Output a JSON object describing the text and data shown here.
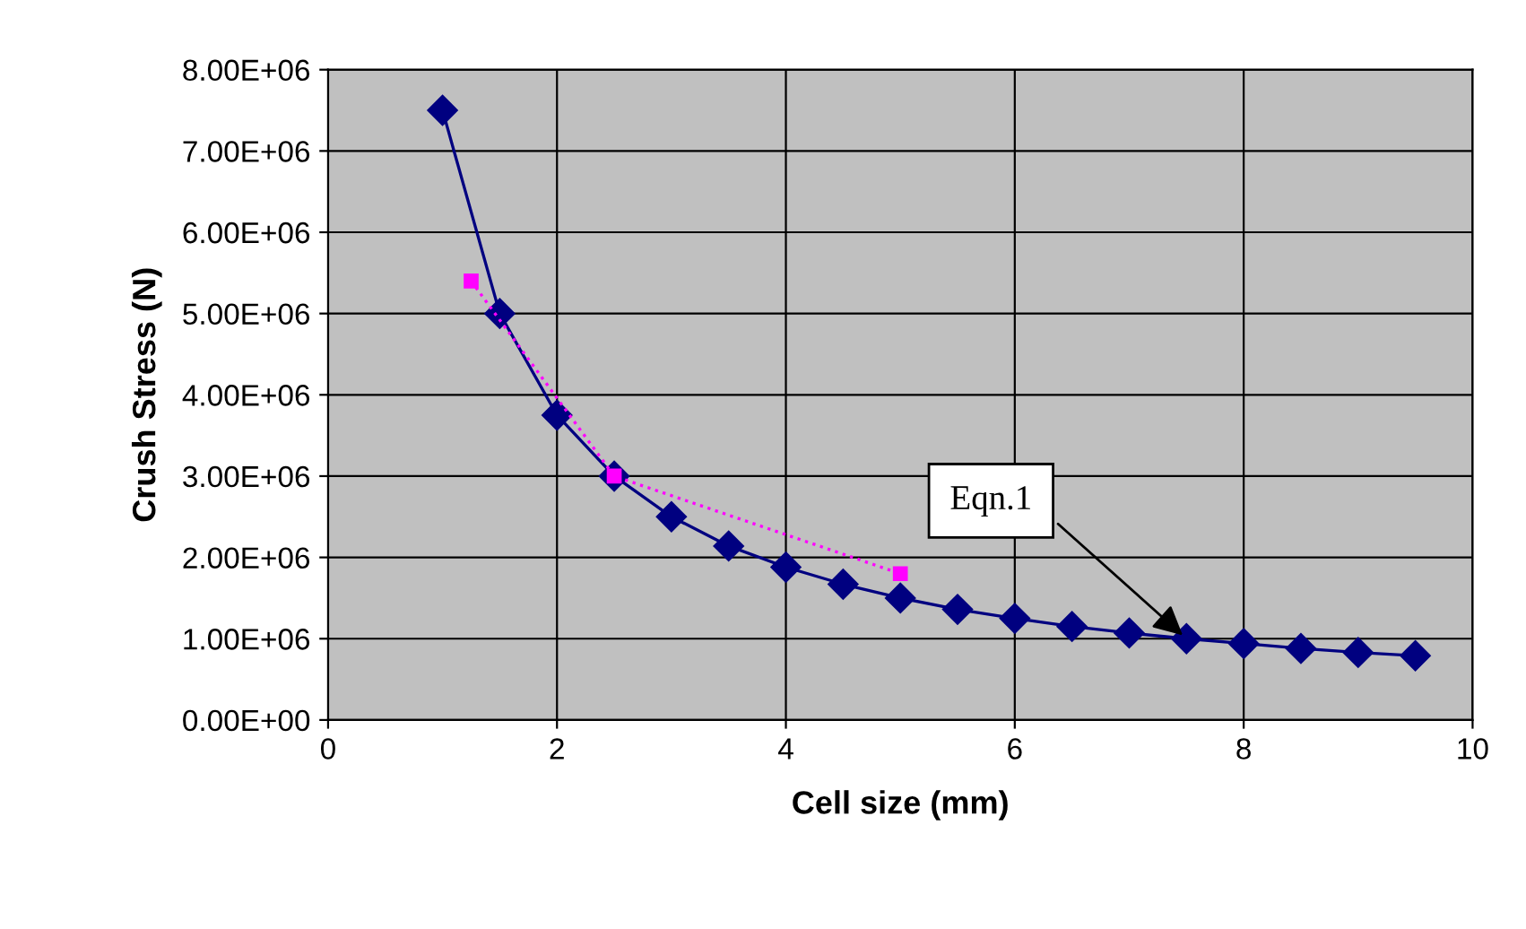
{
  "chart_data": {
    "type": "line",
    "xlabel": "Cell size (mm)",
    "ylabel": "Crush Stress (N)",
    "xlim": [
      0,
      10
    ],
    "xticks": [
      0,
      2,
      4,
      6,
      8,
      10
    ],
    "ylim": [
      0,
      8000000
    ],
    "yticks": [
      {
        "value": 0,
        "label": "0.00E+00"
      },
      {
        "value": 1000000,
        "label": "1.00E+06"
      },
      {
        "value": 2000000,
        "label": "2.00E+06"
      },
      {
        "value": 3000000,
        "label": "3.00E+06"
      },
      {
        "value": 4000000,
        "label": "4.00E+06"
      },
      {
        "value": 5000000,
        "label": "5.00E+06"
      },
      {
        "value": 6000000,
        "label": "6.00E+06"
      },
      {
        "value": 7000000,
        "label": "7.00E+06"
      },
      {
        "value": 8000000,
        "label": "8.00E+06"
      }
    ],
    "grid": true,
    "legend": false,
    "series": [
      {
        "color": "#000080",
        "marker": "diamond",
        "line_style": "solid",
        "x": [
          1,
          1.5,
          2,
          2.5,
          3,
          3.5,
          4,
          4.5,
          5,
          5.5,
          6,
          6.5,
          7,
          7.5,
          8,
          8.5,
          9,
          9.5
        ],
        "values": [
          7500000,
          5000000,
          3750000,
          3000000,
          2500000,
          2140000,
          1880000,
          1670000,
          1500000,
          1360000,
          1250000,
          1150000,
          1070000,
          1000000,
          940000,
          880000,
          830000,
          790000
        ]
      },
      {
        "color": "#ff00ff",
        "marker": "square",
        "line_style": "dotted",
        "x": [
          1.25,
          2.5,
          5
        ],
        "values": [
          5400000,
          3000000,
          1800000
        ]
      }
    ],
    "annotations": [
      {
        "text": "Eqn.1",
        "x": 7.5,
        "y": 1000000
      }
    ]
  }
}
